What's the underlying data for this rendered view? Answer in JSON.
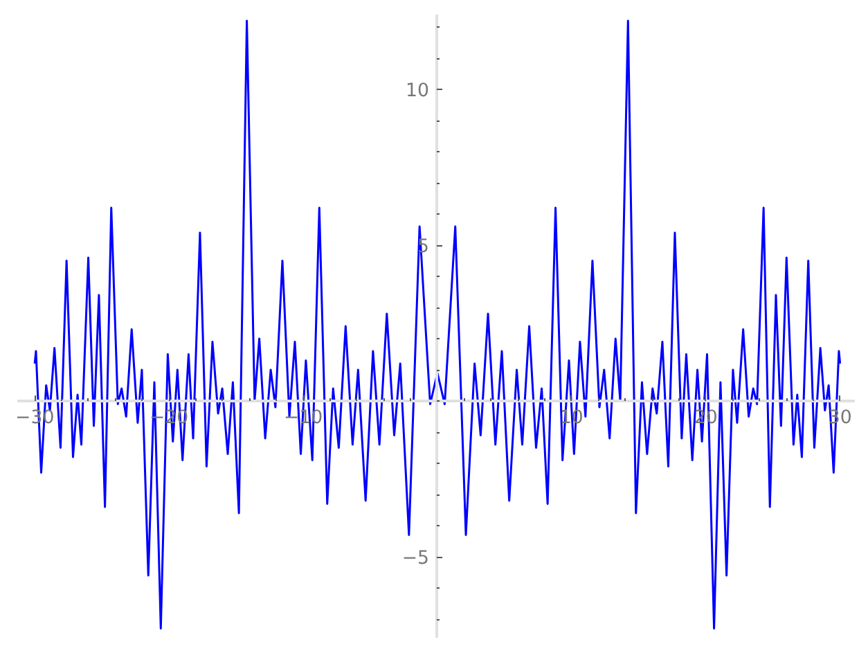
{
  "chart_data": {
    "type": "line",
    "xlim": [
      -31.3,
      31.1
    ],
    "ylim": [
      -7.6,
      12.4
    ],
    "xticks": [
      -30,
      -20,
      -10,
      10,
      20,
      30
    ],
    "yticks": [
      -5,
      5,
      10
    ],
    "grid": false,
    "line_style": "solid",
    "series": [
      {
        "color": "#0000ff",
        "x": [
          -30,
          -29.91,
          -29.52,
          -29.15,
          -28.87,
          -28.53,
          -28.08,
          -27.63,
          -27.15,
          -26.81,
          -26.53,
          -26.01,
          -25.6,
          -25.22,
          -24.77,
          -24.3,
          -23.81,
          -23.53,
          -23.19,
          -22.78,
          -22.33,
          -22.02,
          -21.54,
          -21.09,
          -20.61,
          -20.09,
          -19.71,
          -19.37,
          -18.99,
          -18.54,
          -18.2,
          -17.69,
          -17.2,
          -16.76,
          -16.34,
          -16.03,
          -15.62,
          -15.24,
          -14.79,
          -14.2,
          -13.62,
          -13.27,
          -12.83,
          -12.42,
          -12.07,
          -11.55,
          -11.03,
          -10.62,
          -10.18,
          -9.8,
          -9.32,
          -8.8,
          -8.21,
          -7.77,
          -7.35,
          -6.84,
          -6.32,
          -5.91,
          -5.35,
          -4.8,
          -4.32,
          -3.77,
          -3.22,
          -2.77,
          -2.12,
          -1.33,
          -0.54,
          0,
          0.54,
          1.33,
          2.12,
          2.77,
          3.22,
          3.77,
          4.32,
          4.8,
          5.35,
          5.91,
          6.32,
          6.84,
          7.35,
          7.77,
          8.21,
          8.8,
          9.32,
          9.8,
          10.18,
          10.62,
          11.03,
          11.55,
          12.07,
          12.42,
          12.83,
          13.27,
          13.62,
          14.2,
          14.79,
          15.24,
          15.62,
          16.03,
          16.34,
          16.76,
          17.2,
          17.69,
          18.2,
          18.54,
          18.99,
          19.37,
          19.71,
          20.09,
          20.61,
          21.09,
          21.54,
          22.02,
          22.33,
          22.78,
          23.19,
          23.53,
          23.81,
          24.3,
          24.77,
          25.22,
          25.6,
          26.01,
          26.53,
          26.81,
          27.15,
          27.63,
          28.08,
          28.53,
          28.87,
          29.15,
          29.52,
          29.91,
          30
        ],
        "values": [
          1.2,
          1.6,
          -2.3,
          0.5,
          -0.3,
          1.7,
          -1.5,
          4.5,
          -1.8,
          0.2,
          -1.4,
          4.6,
          -0.8,
          3.4,
          -3.4,
          6.2,
          -0.1,
          0.4,
          -0.5,
          2.3,
          -0.7,
          1.0,
          -5.6,
          0.6,
          -7.3,
          1.5,
          -1.3,
          1.0,
          -1.9,
          1.5,
          -1.2,
          5.4,
          -2.1,
          1.9,
          -0.4,
          0.4,
          -1.7,
          0.6,
          -3.6,
          12.2,
          0.0,
          2.0,
          -1.2,
          1.0,
          -0.2,
          4.5,
          -0.5,
          1.9,
          -1.7,
          1.3,
          -1.9,
          6.2,
          -3.3,
          0.4,
          -1.5,
          2.4,
          -1.4,
          1.0,
          -3.2,
          1.6,
          -1.4,
          2.8,
          -1.1,
          1.2,
          -4.3,
          5.6,
          -0.1,
          0.9,
          -0.1,
          5.6,
          -4.3,
          1.2,
          -1.1,
          2.8,
          -1.4,
          1.6,
          -3.2,
          1.0,
          -1.4,
          2.4,
          -1.5,
          0.4,
          -3.3,
          6.2,
          -1.9,
          1.3,
          -1.7,
          1.9,
          -0.5,
          4.5,
          -0.2,
          1.0,
          -1.2,
          2.0,
          0.0,
          12.2,
          -3.6,
          0.6,
          -1.7,
          0.4,
          -0.4,
          1.9,
          -2.1,
          5.4,
          -1.2,
          1.5,
          -1.9,
          1.0,
          -1.3,
          1.5,
          -7.3,
          0.6,
          -5.6,
          1.0,
          -0.7,
          2.3,
          -0.5,
          0.4,
          -0.1,
          6.2,
          -3.4,
          3.4,
          -0.8,
          4.6,
          -1.4,
          0.2,
          -1.8,
          4.5,
          -1.5,
          1.7,
          -0.3,
          0.5,
          -2.3,
          1.6,
          1.2
        ]
      }
    ]
  }
}
